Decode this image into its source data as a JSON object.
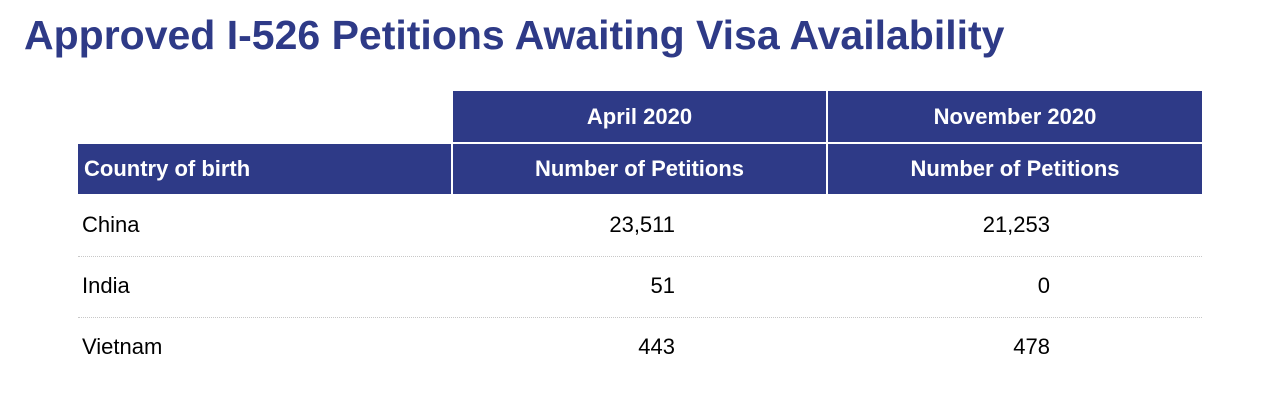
{
  "title": "Approved I-526 Petitions Awaiting Visa Availability",
  "colors": {
    "header_bg": "#2e3a87",
    "title_text": "#2e3a87",
    "header_text": "#ffffff"
  },
  "table": {
    "period_headers": [
      "April 2020",
      "November 2020"
    ],
    "column_headers": [
      "Country of birth",
      "Number of Petitions",
      "Number of Petitions"
    ],
    "rows": [
      {
        "country": "China",
        "april_2020": "23,511",
        "november_2020": "21,253"
      },
      {
        "country": "India",
        "april_2020": "51",
        "november_2020": "0"
      },
      {
        "country": "Vietnam",
        "april_2020": "443",
        "november_2020": "478"
      }
    ]
  }
}
